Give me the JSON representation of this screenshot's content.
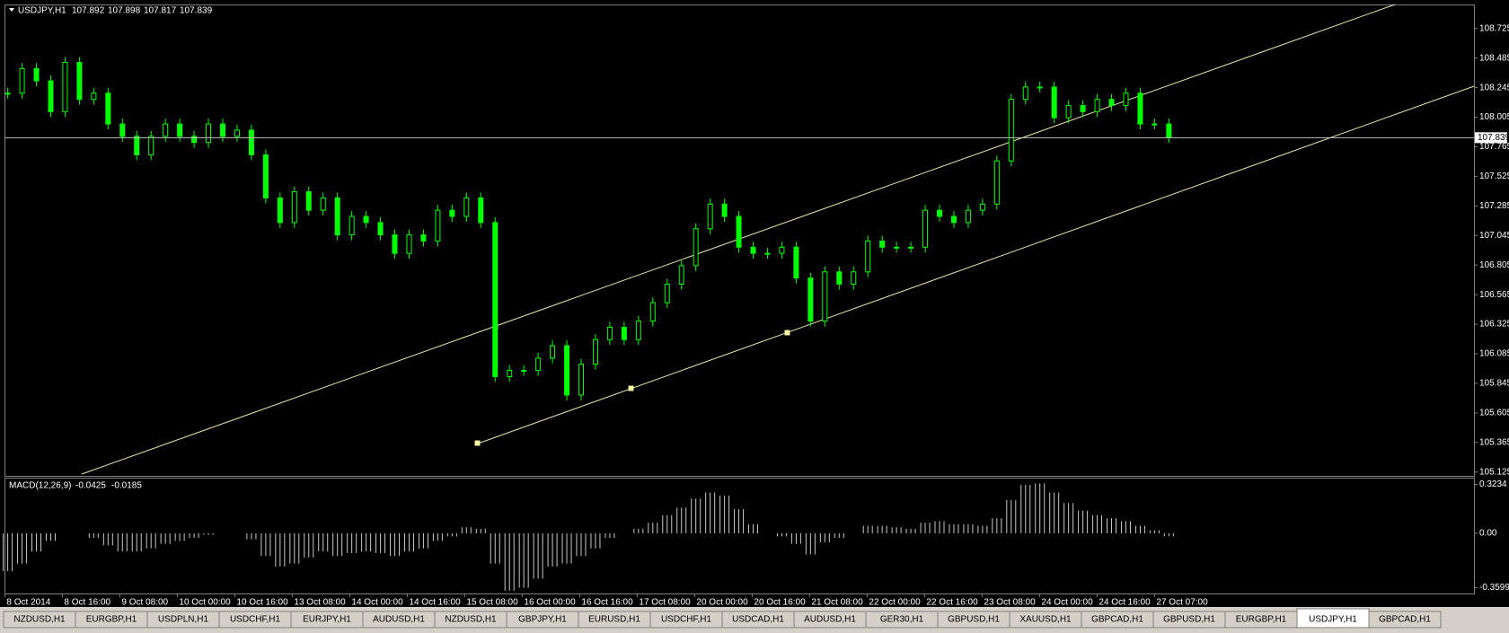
{
  "chart_data": {
    "type": "candlestick",
    "title": "USDJPY,H1",
    "ohlc": [
      107.892,
      107.898,
      107.817,
      107.839
    ],
    "color": "#00ff00",
    "values": [
      108.2,
      108.4,
      108.3,
      108.05,
      108.45,
      108.15,
      108.2,
      107.95,
      107.85,
      107.7,
      107.85,
      107.95,
      107.85,
      107.8,
      107.95,
      107.85,
      107.9,
      107.7,
      107.35,
      107.15,
      107.4,
      107.25,
      107.35,
      107.05,
      107.2,
      107.15,
      107.05,
      106.9,
      107.05,
      107.0,
      107.25,
      107.2,
      107.35,
      107.15,
      105.9,
      105.95,
      105.95,
      106.05,
      106.15,
      105.75,
      106.0,
      106.2,
      106.3,
      106.2,
      106.35,
      106.5,
      106.65,
      106.8,
      107.1,
      107.3,
      107.2,
      106.95,
      106.9,
      106.9,
      106.95,
      106.7,
      106.35,
      106.75,
      106.65,
      106.75,
      107.0,
      106.95,
      106.95,
      106.95,
      107.25,
      107.2,
      107.15,
      107.25,
      107.3,
      107.65,
      108.15,
      108.25,
      108.25,
      108.0,
      108.1,
      108.05,
      108.15,
      108.1,
      108.2,
      107.95,
      107.95,
      107.84
    ],
    "ylim": [
      105.094,
      108.92
    ],
    "yticks": [
      108.725,
      108.485,
      108.245,
      108.005,
      107.765,
      107.525,
      107.285,
      107.045,
      106.805,
      106.565,
      106.325,
      106.085,
      105.845,
      105.605,
      105.365,
      105.125
    ],
    "xticks": [
      "8 Oct 2014",
      "8 Oct 16:00",
      "9 Oct 08:00",
      "10 Oct 00:00",
      "10 Oct 16:00",
      "13 Oct 08:00",
      "14 Oct 00:00",
      "14 Oct 16:00",
      "15 Oct 08:00",
      "16 Oct 00:00",
      "16 Oct 16:00",
      "17 Oct 08:00",
      "20 Oct 00:00",
      "20 Oct 16:00",
      "21 Oct 08:00",
      "22 Oct 00:00",
      "22 Oct 16:00",
      "23 Oct 08:00",
      "24 Oct 00:00",
      "24 Oct 16:00",
      "27 Oct 07:00"
    ],
    "macd": {
      "title": "MACD(12,26,9)",
      "readings": [
        -0.0425,
        -0.0185
      ],
      "color": "#c8c8c8",
      "values": [
        -0.25,
        -0.2,
        -0.12,
        -0.05,
        0.0,
        0.0,
        -0.03,
        -0.08,
        -0.12,
        -0.12,
        -0.1,
        -0.07,
        -0.05,
        -0.03,
        -0.01,
        0.0,
        0.0,
        -0.04,
        -0.15,
        -0.22,
        -0.2,
        -0.16,
        -0.12,
        -0.15,
        -0.13,
        -0.12,
        -0.13,
        -0.15,
        -0.12,
        -0.1,
        -0.05,
        -0.02,
        0.04,
        0.03,
        -0.2,
        -0.38,
        -0.36,
        -0.3,
        -0.22,
        -0.2,
        -0.15,
        -0.1,
        -0.03,
        0.0,
        0.03,
        0.07,
        0.12,
        0.17,
        0.23,
        0.27,
        0.25,
        0.16,
        0.06,
        0.0,
        -0.02,
        -0.07,
        -0.14,
        -0.06,
        -0.03,
        0.0,
        0.05,
        0.05,
        0.04,
        0.03,
        0.07,
        0.08,
        0.06,
        0.06,
        0.05,
        0.1,
        0.22,
        0.32,
        0.33,
        0.27,
        0.2,
        0.15,
        0.12,
        0.1,
        0.08,
        0.05,
        0.02,
        -0.02
      ],
      "ylim": [
        -0.398,
        0.362
      ],
      "yticks": [
        0.3234,
        {
          "value": 0,
          "label": "0.00"
        },
        -0.3599
      ]
    },
    "tabs": [
      "NZDUSD,H1",
      "EURGBP,H1",
      "USDPLN,H1",
      "USDCHF,H1",
      "EURJPY,H1",
      "AUDUSD,H1",
      "NZDUSD,H1",
      "GBPJPY,H1",
      "EURUSD,H1",
      "USDCHF,H1",
      "USDCAD,H1",
      "AUDUSD,H1",
      "GER30,H1",
      "GBPUSD,H1",
      "XAUUSD,H1",
      "GBPCAD,H1",
      "GBPUSD,H1",
      "EURGBP,H1",
      "USDJPY,H1",
      "GBPCAD,H1"
    ],
    "active_tab": 18
  }
}
